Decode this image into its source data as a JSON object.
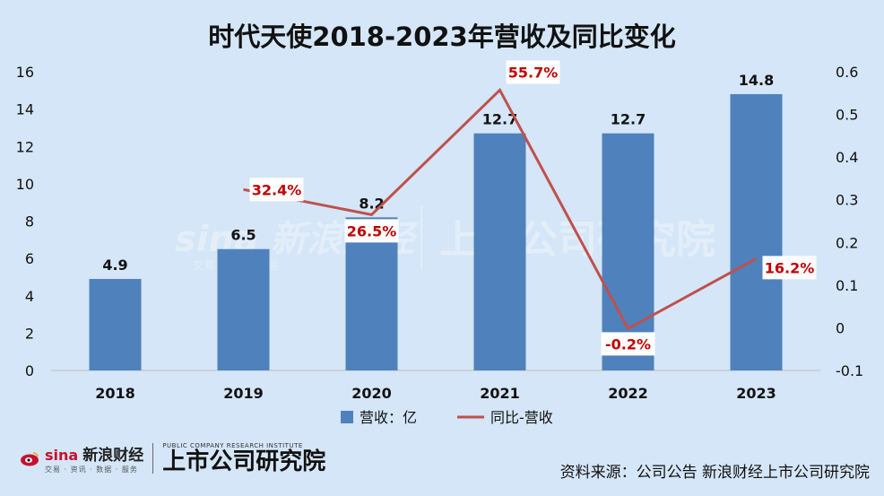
{
  "chart_data": {
    "type": "bar+line",
    "title": "时代天使2018-2023年营收及同比变化",
    "categories": [
      "2018",
      "2019",
      "2020",
      "2021",
      "2022",
      "2023"
    ],
    "series": [
      {
        "name": "营收：亿",
        "type": "bar",
        "axis": "left",
        "values": [
          4.9,
          6.5,
          8.2,
          12.7,
          12.7,
          14.8
        ],
        "labels": [
          "4.9",
          "6.5",
          "8.2",
          "12.7",
          "12.7",
          "14.8"
        ],
        "color": "#4f81bd"
      },
      {
        "name": "同比-营收",
        "type": "line",
        "axis": "right",
        "x": [
          "2019",
          "2020",
          "2021",
          "2022",
          "2023"
        ],
        "values": [
          0.324,
          0.265,
          0.557,
          -0.002,
          0.162
        ],
        "labels": [
          "32.4%",
          "26.5%",
          "55.7%",
          "-0.2%",
          "16.2%"
        ],
        "color": "#c0504d"
      }
    ],
    "y_left": {
      "min": 0,
      "max": 16,
      "ticks": [
        "0",
        "2",
        "4",
        "6",
        "8",
        "10",
        "12",
        "14",
        "16"
      ]
    },
    "y_right": {
      "min": -0.1,
      "max": 0.6,
      "ticks": [
        "-0.1",
        "0",
        "0.1",
        "0.2",
        "0.3",
        "0.4",
        "0.5",
        "0.6"
      ]
    },
    "legend": "bottom-center",
    "grid": false
  },
  "watermark": {
    "brand": "sina 新浪财经",
    "sub": "交易 · 资讯 · 数据",
    "institute": "上市公司研究院"
  },
  "footer": {
    "sina_brand": "sina",
    "sina_name": "新浪财经",
    "sina_sub": "交易 · 资讯 · 数据 · 服务",
    "institute_en": "PUBLIC COMPANY RESEARCH INSTITUTE",
    "institute_cn": "上市公司研究院",
    "source": "资料来源：公司公告 新浪财经上市公司研究院"
  },
  "colors": {
    "background": "#d4e6f7",
    "bar": "#4f81bd",
    "line": "#c0504d",
    "label_red": "#c00000"
  }
}
